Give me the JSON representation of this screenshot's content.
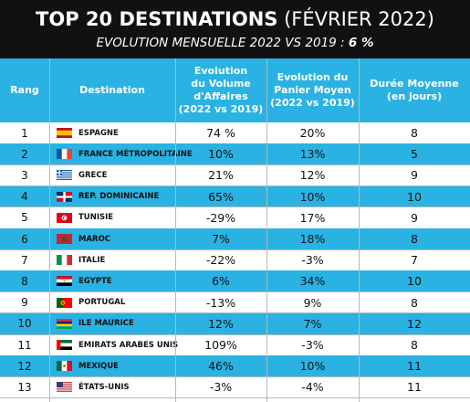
{
  "banner": {
    "title_bold": "TOP 20 DESTINATIONS",
    "title_light": " (FÉVRIER 2022)",
    "subtitle_text": "EVOLUTION MENSUELLE 2022 VS 2019 : ",
    "subtitle_value": "6 %"
  },
  "table": {
    "headers": {
      "rank": "Rang",
      "destination": "Destination",
      "volume": "Evolution\ndu Volume\nd'Affaires\n(2022 vs 2019)",
      "panier": "Evolution du\nPanier Moyen\n(2022 vs 2019)",
      "duree": "Durée Moyenne\n(en jours)"
    },
    "rows": [
      {
        "rank": "1",
        "destination": "ESPAGNE",
        "flag": "flag-spain",
        "volume": "74 %",
        "panier": "20%",
        "duree": "8"
      },
      {
        "rank": "2",
        "destination": "FRANCE MÉTROPOLITAINE",
        "flag": "flag-france",
        "volume": "10%",
        "panier": "13%",
        "duree": "5"
      },
      {
        "rank": "3",
        "destination": "GRECE",
        "flag": "flag-greece",
        "volume": "21%",
        "panier": "12%",
        "duree": "9"
      },
      {
        "rank": "4",
        "destination": "REP. DOMINICAINE",
        "flag": "flag-dominican-republic",
        "volume": "65%",
        "panier": "10%",
        "duree": "10"
      },
      {
        "rank": "5",
        "destination": "TUNISIE",
        "flag": "flag-tunisia",
        "volume": "-29%",
        "panier": "17%",
        "duree": "9"
      },
      {
        "rank": "6",
        "destination": "MAROC",
        "flag": "flag-morocco",
        "volume": "7%",
        "panier": "18%",
        "duree": "8"
      },
      {
        "rank": "7",
        "destination": "ITALIE",
        "flag": "flag-italy",
        "volume": "-22%",
        "panier": "-3%",
        "duree": "7"
      },
      {
        "rank": "8",
        "destination": "EGYPTE",
        "flag": "flag-egypt",
        "volume": "6%",
        "panier": "34%",
        "duree": "10"
      },
      {
        "rank": "9",
        "destination": "PORTUGAL",
        "flag": "flag-portugal",
        "volume": "-13%",
        "panier": "9%",
        "duree": "8"
      },
      {
        "rank": "10",
        "destination": "ILE MAURICE",
        "flag": "flag-mauritius",
        "volume": "12%",
        "panier": "7%",
        "duree": "12"
      },
      {
        "rank": "11",
        "destination": "EMIRATS ARABES UNIS",
        "flag": "flag-uae",
        "volume": "109%",
        "panier": "-3%",
        "duree": "8"
      },
      {
        "rank": "12",
        "destination": "MEXIQUE",
        "flag": "flag-mexico",
        "volume": "46%",
        "panier": "10%",
        "duree": "11"
      },
      {
        "rank": "13",
        "destination": "ÉTATS-UNIS",
        "flag": "flag-usa",
        "volume": "-3%",
        "panier": "-4%",
        "duree": "11"
      }
    ]
  },
  "colors": {
    "banner_bg": "#111111",
    "header_bg": "#2ab2e3",
    "alt_row_bg": "#2ab2e3",
    "text": "#111111"
  }
}
